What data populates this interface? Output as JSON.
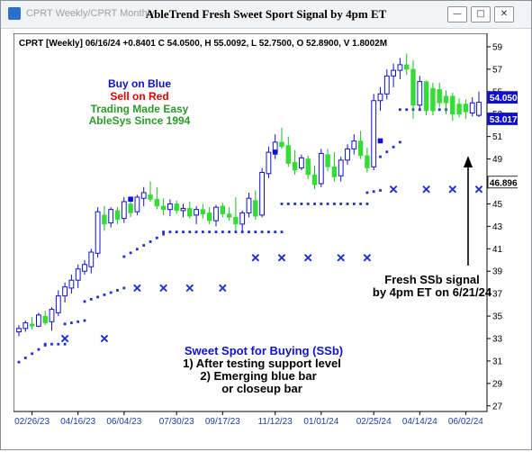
{
  "window": {
    "tabs": "CPRT Weekly/CPRT Monthly",
    "title": "AbleTrend Fresh Sweet Sport Signal by 4pm ET",
    "controls": [
      "minimize",
      "restore",
      "close"
    ]
  },
  "chart_data": {
    "type": "candlestick",
    "info_line": "CPRT [Weekly] 06/16/24 +0.8401 C 54.0500, H 55.0092, L 52.7500, O 52.8900, V 1.8002M",
    "y_ticks": [
      27,
      29,
      31,
      33,
      35,
      37,
      39,
      41,
      43,
      45,
      47,
      49,
      51,
      53,
      55,
      57,
      59
    ],
    "ylim": [
      26.5,
      60.2
    ],
    "x_labels": [
      "02/26/23",
      "04/16/23",
      "06/04/23",
      "07/30/23",
      "09/17/23",
      "11/12/23",
      "01/01/24",
      "02/25/24",
      "04/14/24",
      "06/02/24"
    ],
    "x_label_bar_index": [
      2,
      9,
      16,
      24,
      31,
      39,
      46,
      54,
      61,
      68
    ],
    "price_badges": [
      {
        "value": "54.0500",
        "price": 54.05,
        "bg": "#1010d0",
        "fg": "#ffffff"
      },
      {
        "value": "53.0172",
        "price": 53.02,
        "bg": "#1010d0",
        "fg": "#ffffff"
      },
      {
        "value": "46.8963",
        "price": 46.9,
        "bg": "#ffffff",
        "fg": "#000000"
      }
    ],
    "colors": {
      "up": "#1010d0",
      "down": "#33dd33",
      "wick_down": "#22bb22",
      "signal": "#1f2fd0",
      "text": "#000000"
    },
    "legend_lines": [
      {
        "text": "Buy on Blue",
        "color": "#1010d0"
      },
      {
        "text": "Sell on Red",
        "color": "#e00000"
      },
      {
        "text": "Trading Made Easy",
        "color": "#2a9a2a"
      },
      {
        "text": "AbleSys Since 1994",
        "color": "#2a9a2a"
      }
    ],
    "annotations": {
      "sweet_spot": [
        "Sweet Spot for Buying (SSb)",
        "1) After testing support level",
        "2) Emerging blue bar",
        "or closeup bar"
      ],
      "fresh_signal": [
        "Fresh SSb signal",
        "by 4pm ET on 6/21/24"
      ]
    },
    "bars": [
      {
        "o": 33.6,
        "h": 34.2,
        "l": 33.2,
        "c": 33.9,
        "t": "up"
      },
      {
        "o": 33.9,
        "h": 34.6,
        "l": 33.6,
        "c": 34.4,
        "t": "up"
      },
      {
        "o": 34.3,
        "h": 34.9,
        "l": 33.8,
        "c": 34.1,
        "t": "dn"
      },
      {
        "o": 34.1,
        "h": 35.3,
        "l": 34.0,
        "c": 35.1,
        "t": "up"
      },
      {
        "o": 35.0,
        "h": 35.5,
        "l": 34.2,
        "c": 34.4,
        "t": "dn"
      },
      {
        "o": 34.5,
        "h": 35.8,
        "l": 33.7,
        "c": 35.6,
        "t": "up"
      },
      {
        "o": 35.3,
        "h": 37.3,
        "l": 35.0,
        "c": 36.8,
        "t": "up"
      },
      {
        "o": 36.8,
        "h": 38.0,
        "l": 36.2,
        "c": 37.6,
        "t": "up"
      },
      {
        "o": 37.5,
        "h": 38.7,
        "l": 37.0,
        "c": 38.2,
        "t": "up"
      },
      {
        "o": 38.2,
        "h": 39.6,
        "l": 37.5,
        "c": 39.2,
        "t": "up"
      },
      {
        "o": 39.0,
        "h": 40.0,
        "l": 38.7,
        "c": 39.6,
        "t": "up"
      },
      {
        "o": 39.4,
        "h": 41.0,
        "l": 38.8,
        "c": 40.7,
        "t": "up"
      },
      {
        "o": 40.6,
        "h": 44.7,
        "l": 40.2,
        "c": 44.3,
        "t": "up"
      },
      {
        "o": 44.0,
        "h": 44.8,
        "l": 42.6,
        "c": 43.2,
        "t": "dn"
      },
      {
        "o": 43.3,
        "h": 44.7,
        "l": 42.9,
        "c": 44.5,
        "t": "up"
      },
      {
        "o": 44.4,
        "h": 44.7,
        "l": 43.2,
        "c": 43.6,
        "t": "dn"
      },
      {
        "o": 43.7,
        "h": 45.6,
        "l": 43.3,
        "c": 45.2,
        "t": "up"
      },
      {
        "o": 45.0,
        "h": 45.4,
        "l": 43.8,
        "c": 44.2,
        "t": "dn"
      },
      {
        "o": 44.3,
        "h": 45.8,
        "l": 44.0,
        "c": 45.6,
        "t": "up"
      },
      {
        "o": 45.5,
        "h": 46.5,
        "l": 44.8,
        "c": 46.0,
        "t": "up"
      },
      {
        "o": 45.8,
        "h": 47.0,
        "l": 45.2,
        "c": 45.4,
        "t": "dn"
      },
      {
        "o": 45.4,
        "h": 46.5,
        "l": 44.5,
        "c": 44.8,
        "t": "dn"
      },
      {
        "o": 44.8,
        "h": 45.5,
        "l": 44.0,
        "c": 44.5,
        "t": "dn"
      },
      {
        "o": 44.5,
        "h": 45.4,
        "l": 43.9,
        "c": 45.0,
        "t": "up"
      },
      {
        "o": 45.0,
        "h": 45.3,
        "l": 44.1,
        "c": 44.4,
        "t": "dn"
      },
      {
        "o": 44.4,
        "h": 45.0,
        "l": 43.8,
        "c": 44.6,
        "t": "up"
      },
      {
        "o": 44.6,
        "h": 45.2,
        "l": 43.7,
        "c": 43.9,
        "t": "dn"
      },
      {
        "o": 44.0,
        "h": 44.8,
        "l": 43.2,
        "c": 44.5,
        "t": "up"
      },
      {
        "o": 44.5,
        "h": 45.0,
        "l": 43.7,
        "c": 44.1,
        "t": "dn"
      },
      {
        "o": 44.2,
        "h": 44.7,
        "l": 43.2,
        "c": 43.5,
        "t": "dn"
      },
      {
        "o": 43.5,
        "h": 44.9,
        "l": 43.0,
        "c": 44.7,
        "t": "up"
      },
      {
        "o": 44.8,
        "h": 45.1,
        "l": 43.8,
        "c": 44.1,
        "t": "dn"
      },
      {
        "o": 44.1,
        "h": 44.7,
        "l": 43.5,
        "c": 43.8,
        "t": "dn"
      },
      {
        "o": 43.8,
        "h": 45.6,
        "l": 42.6,
        "c": 43.2,
        "t": "dn"
      },
      {
        "o": 43.2,
        "h": 44.4,
        "l": 42.6,
        "c": 44.2,
        "t": "up"
      },
      {
        "o": 44.2,
        "h": 46.0,
        "l": 43.8,
        "c": 45.5,
        "t": "up"
      },
      {
        "o": 45.3,
        "h": 46.2,
        "l": 43.6,
        "c": 43.9,
        "t": "dn"
      },
      {
        "o": 44.0,
        "h": 48.2,
        "l": 43.8,
        "c": 47.8,
        "t": "up"
      },
      {
        "o": 47.7,
        "h": 50.1,
        "l": 47.3,
        "c": 49.6,
        "t": "up"
      },
      {
        "o": 49.6,
        "h": 51.2,
        "l": 49.0,
        "c": 50.5,
        "t": "up"
      },
      {
        "o": 50.5,
        "h": 51.8,
        "l": 49.9,
        "c": 50.1,
        "t": "dn"
      },
      {
        "o": 50.2,
        "h": 51.0,
        "l": 48.3,
        "c": 48.6,
        "t": "dn"
      },
      {
        "o": 48.7,
        "h": 49.8,
        "l": 47.6,
        "c": 48.0,
        "t": "dn"
      },
      {
        "o": 48.2,
        "h": 49.4,
        "l": 48.0,
        "c": 49.1,
        "t": "up"
      },
      {
        "o": 49.0,
        "h": 49.3,
        "l": 47.2,
        "c": 47.6,
        "t": "dn"
      },
      {
        "o": 47.6,
        "h": 48.4,
        "l": 46.3,
        "c": 46.7,
        "t": "dn"
      },
      {
        "o": 46.8,
        "h": 49.9,
        "l": 46.5,
        "c": 49.5,
        "t": "up"
      },
      {
        "o": 49.4,
        "h": 49.9,
        "l": 47.9,
        "c": 48.3,
        "t": "dn"
      },
      {
        "o": 48.3,
        "h": 49.6,
        "l": 47.0,
        "c": 47.4,
        "t": "dn"
      },
      {
        "o": 47.5,
        "h": 49.2,
        "l": 47.0,
        "c": 48.9,
        "t": "up"
      },
      {
        "o": 48.9,
        "h": 50.3,
        "l": 48.5,
        "c": 49.9,
        "t": "up"
      },
      {
        "o": 49.9,
        "h": 51.2,
        "l": 49.4,
        "c": 50.6,
        "t": "up"
      },
      {
        "o": 50.6,
        "h": 51.5,
        "l": 49.0,
        "c": 49.3,
        "t": "dn"
      },
      {
        "o": 49.3,
        "h": 50.0,
        "l": 47.8,
        "c": 48.2,
        "t": "dn"
      },
      {
        "o": 48.3,
        "h": 54.8,
        "l": 48.0,
        "c": 54.2,
        "t": "up"
      },
      {
        "o": 54.2,
        "h": 55.4,
        "l": 53.3,
        "c": 54.8,
        "t": "up"
      },
      {
        "o": 54.8,
        "h": 57.0,
        "l": 54.3,
        "c": 56.4,
        "t": "up"
      },
      {
        "o": 56.4,
        "h": 57.5,
        "l": 55.4,
        "c": 56.9,
        "t": "up"
      },
      {
        "o": 56.9,
        "h": 58.0,
        "l": 56.1,
        "c": 57.4,
        "t": "up"
      },
      {
        "o": 57.4,
        "h": 58.4,
        "l": 56.5,
        "c": 57.0,
        "t": "dn"
      },
      {
        "o": 57.0,
        "h": 57.8,
        "l": 52.6,
        "c": 53.8,
        "t": "dn"
      },
      {
        "o": 53.8,
        "h": 56.4,
        "l": 53.4,
        "c": 55.9,
        "t": "up"
      },
      {
        "o": 55.9,
        "h": 56.0,
        "l": 52.9,
        "c": 53.3,
        "t": "dn"
      },
      {
        "o": 53.3,
        "h": 55.8,
        "l": 52.9,
        "c": 55.3,
        "t": "dn"
      },
      {
        "o": 55.2,
        "h": 55.8,
        "l": 53.6,
        "c": 54.0,
        "t": "dn"
      },
      {
        "o": 54.0,
        "h": 55.1,
        "l": 53.0,
        "c": 54.6,
        "t": "dn"
      },
      {
        "o": 54.6,
        "h": 54.9,
        "l": 52.4,
        "c": 53.0,
        "t": "dn"
      },
      {
        "o": 53.0,
        "h": 54.4,
        "l": 52.7,
        "c": 53.9,
        "t": "dn"
      },
      {
        "o": 53.9,
        "h": 54.3,
        "l": 52.6,
        "c": 53.2,
        "t": "dn"
      },
      {
        "o": 53.1,
        "h": 54.5,
        "l": 52.8,
        "c": 54.0,
        "t": "up"
      },
      {
        "o": 52.89,
        "h": 55.0092,
        "l": 52.75,
        "c": 54.05,
        "t": "up"
      }
    ],
    "support_levels": [
      {
        "from": 0,
        "to": 4,
        "start": 30.9,
        "end": 32.4
      },
      {
        "from": 4,
        "to": 7,
        "start": 32.5,
        "end": 32.5
      },
      {
        "from": 7,
        "to": 10,
        "start": 34.3,
        "end": 34.6
      },
      {
        "from": 10,
        "to": 16,
        "start": 36.3,
        "end": 37.5
      },
      {
        "from": 16,
        "to": 22,
        "start": 40.3,
        "end": 42.3
      },
      {
        "from": 22,
        "to": 40,
        "start": 42.5,
        "end": 42.5
      },
      {
        "from": 40,
        "to": 53,
        "start": 45.0,
        "end": 45.0
      },
      {
        "from": 53,
        "to": 55,
        "start": 46.0,
        "end": 46.2
      },
      {
        "from": 55,
        "to": 58,
        "start": 49.2,
        "end": 50.5
      },
      {
        "from": 58,
        "to": 70,
        "start": 53.4,
        "end": 53.4
      }
    ],
    "ssb_signals": [
      {
        "i": 7,
        "price": 33.0
      },
      {
        "i": 13,
        "price": 33.0
      },
      {
        "i": 18,
        "price": 37.5
      },
      {
        "i": 22,
        "price": 37.5
      },
      {
        "i": 26,
        "price": 37.5
      },
      {
        "i": 31,
        "price": 37.5
      },
      {
        "i": 36,
        "price": 40.2
      },
      {
        "i": 40,
        "price": 40.2
      },
      {
        "i": 44,
        "price": 40.2
      },
      {
        "i": 49,
        "price": 40.2
      },
      {
        "i": 53,
        "price": 40.2
      },
      {
        "i": 57,
        "price": 46.3
      },
      {
        "i": 62,
        "price": 46.3
      },
      {
        "i": 66,
        "price": 46.3
      },
      {
        "i": 70,
        "price": 46.3
      }
    ]
  }
}
